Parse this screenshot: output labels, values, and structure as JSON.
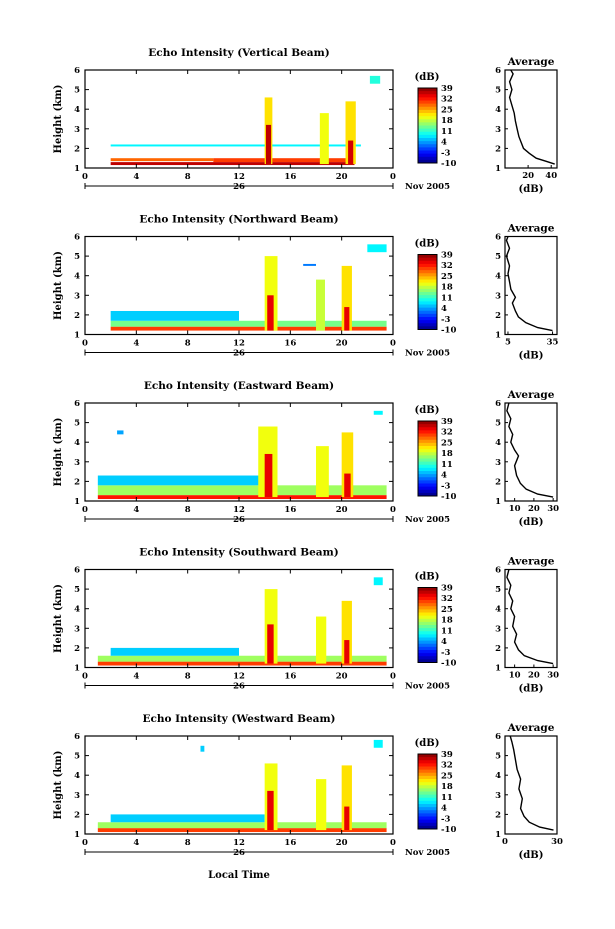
{
  "figure": {
    "xlabel": "Local Time",
    "date_label": "26",
    "month_label": "Nov 2005",
    "colorbar_unit": "(dB)",
    "average_title": "Average",
    "average_xlabel": "(dB)"
  },
  "chart_data": [
    {
      "type": "heatmap",
      "title": "Echo Intensity (Vertical Beam)",
      "xlabel": "Local Time",
      "ylabel": "Height (km)",
      "xticks": [
        "0",
        "4",
        "8",
        "12",
        "16",
        "20",
        "0"
      ],
      "xlim": [
        0,
        24
      ],
      "yticks": [
        "1",
        "2",
        "3",
        "4",
        "5",
        "6"
      ],
      "ylim": [
        1,
        6
      ],
      "colorbar": {
        "label": "(dB)",
        "ticks": [
          "39",
          "32",
          "25",
          "18",
          "11",
          "4",
          "-3",
          "-10"
        ],
        "range": [
          -10,
          39
        ]
      },
      "average": {
        "title": "Average",
        "xlabel": "(dB)",
        "xticks": [
          "20",
          "40"
        ],
        "xlim": [
          0,
          45
        ],
        "ylim": [
          1,
          6
        ],
        "profile": [
          [
            43,
            1.2
          ],
          [
            35,
            1.35
          ],
          [
            27,
            1.5
          ],
          [
            21,
            1.75
          ],
          [
            16,
            2.0
          ],
          [
            14,
            2.3
          ],
          [
            12,
            2.6
          ],
          [
            10.5,
            3.0
          ],
          [
            9,
            3.4
          ],
          [
            8,
            3.8
          ],
          [
            6,
            4.2
          ],
          [
            4,
            4.6
          ],
          [
            6,
            5.0
          ],
          [
            4,
            5.4
          ],
          [
            7,
            5.8
          ],
          [
            5,
            6.0
          ]
        ]
      },
      "echo_cells": [
        [
          2,
          21.5,
          2.1,
          2.2,
          8
        ],
        [
          2,
          10,
          1.35,
          1.5,
          28
        ],
        [
          10,
          21,
          1.3,
          1.5,
          30
        ],
        [
          2,
          21,
          1.15,
          1.3,
          36
        ],
        [
          14,
          14.6,
          1.2,
          4.6,
          22
        ],
        [
          14.1,
          14.5,
          1.2,
          3.2,
          36
        ],
        [
          18.3,
          19,
          1.2,
          3.8,
          20
        ],
        [
          20.3,
          21.1,
          1.2,
          4.4,
          22
        ],
        [
          20.5,
          20.9,
          1.2,
          2.4,
          35
        ],
        [
          22.2,
          23,
          5.3,
          5.7,
          10
        ]
      ]
    },
    {
      "type": "heatmap",
      "title": "Echo Intensity (Northward Beam)",
      "xlabel": "Local Time",
      "ylabel": "Height (km)",
      "xticks": [
        "0",
        "4",
        "8",
        "12",
        "16",
        "20",
        "0"
      ],
      "xlim": [
        0,
        24
      ],
      "yticks": [
        "1",
        "2",
        "3",
        "4",
        "5",
        "6"
      ],
      "ylim": [
        1,
        6
      ],
      "colorbar": {
        "label": "(dB)",
        "ticks": [
          "39",
          "32",
          "25",
          "18",
          "11",
          "4",
          "-3",
          "-10"
        ],
        "range": [
          -10,
          39
        ]
      },
      "average": {
        "title": "Average",
        "xlabel": "(dB)",
        "xticks": [
          "5",
          "35"
        ],
        "xlim": [
          3,
          38
        ],
        "ylim": [
          1,
          6
        ],
        "profile": [
          [
            35,
            1.2
          ],
          [
            25,
            1.35
          ],
          [
            17,
            1.6
          ],
          [
            12,
            1.9
          ],
          [
            10,
            2.2
          ],
          [
            8,
            2.6
          ],
          [
            10,
            2.9
          ],
          [
            7,
            3.3
          ],
          [
            6,
            3.7
          ],
          [
            5,
            4.1
          ],
          [
            6,
            4.5
          ],
          [
            4,
            5.0
          ],
          [
            6,
            5.4
          ],
          [
            4,
            5.8
          ],
          [
            5,
            6.0
          ]
        ]
      },
      "echo_cells": [
        [
          2,
          23.5,
          1.2,
          1.4,
          30
        ],
        [
          2,
          23.5,
          1.4,
          1.7,
          14
        ],
        [
          2,
          12,
          1.7,
          2.2,
          6
        ],
        [
          14,
          15,
          1.2,
          5.0,
          20
        ],
        [
          14.2,
          14.7,
          1.2,
          3.0,
          34
        ],
        [
          18,
          18.7,
          1.2,
          3.8,
          18
        ],
        [
          20,
          20.8,
          1.2,
          4.5,
          22
        ],
        [
          20.2,
          20.6,
          1.2,
          2.4,
          34
        ],
        [
          17,
          18,
          4.5,
          4.6,
          2
        ],
        [
          22,
          23.5,
          5.2,
          5.6,
          8
        ]
      ]
    },
    {
      "type": "heatmap",
      "title": "Echo Intensity (Eastward Beam)",
      "xlabel": "Local Time",
      "ylabel": "Height (km)",
      "xticks": [
        "0",
        "4",
        "8",
        "12",
        "16",
        "20",
        "0"
      ],
      "xlim": [
        0,
        24
      ],
      "yticks": [
        "1",
        "2",
        "3",
        "4",
        "5",
        "6"
      ],
      "ylim": [
        1,
        6
      ],
      "colorbar": {
        "label": "(dB)",
        "ticks": [
          "39",
          "32",
          "25",
          "18",
          "11",
          "4",
          "-3",
          "-10"
        ],
        "range": [
          -10,
          39
        ]
      },
      "average": {
        "title": "Average",
        "xlabel": "(dB)",
        "xticks": [
          "10",
          "20",
          "30"
        ],
        "xlim": [
          5,
          32
        ],
        "ylim": [
          1,
          6
        ],
        "profile": [
          [
            30,
            1.2
          ],
          [
            22,
            1.35
          ],
          [
            16,
            1.6
          ],
          [
            13,
            1.9
          ],
          [
            11,
            2.3
          ],
          [
            10,
            2.8
          ],
          [
            12,
            3.3
          ],
          [
            10,
            3.6
          ],
          [
            8,
            4.0
          ],
          [
            9,
            4.4
          ],
          [
            7,
            4.8
          ],
          [
            8,
            5.2
          ],
          [
            6,
            5.6
          ],
          [
            7,
            6.0
          ]
        ]
      },
      "echo_cells": [
        [
          1,
          23.5,
          1.1,
          1.3,
          32
        ],
        [
          1,
          23.5,
          1.3,
          1.8,
          16
        ],
        [
          1,
          14,
          1.8,
          2.3,
          6
        ],
        [
          13.5,
          15,
          1.2,
          4.8,
          20
        ],
        [
          14,
          14.6,
          1.2,
          3.4,
          34
        ],
        [
          18,
          19,
          1.2,
          3.8,
          20
        ],
        [
          20,
          20.9,
          1.2,
          4.5,
          22
        ],
        [
          20.2,
          20.7,
          1.2,
          2.4,
          34
        ],
        [
          2.5,
          3.0,
          4.4,
          4.6,
          4
        ],
        [
          22.5,
          23.2,
          5.4,
          5.6,
          8
        ]
      ]
    },
    {
      "type": "heatmap",
      "title": "Echo Intensity (Southward Beam)",
      "xlabel": "Local Time",
      "ylabel": "Height (km)",
      "xticks": [
        "0",
        "4",
        "8",
        "12",
        "16",
        "20",
        "0"
      ],
      "xlim": [
        0,
        24
      ],
      "yticks": [
        "1",
        "2",
        "3",
        "4",
        "5",
        "6"
      ],
      "ylim": [
        1,
        6
      ],
      "colorbar": {
        "label": "(dB)",
        "ticks": [
          "39",
          "32",
          "25",
          "18",
          "11",
          "4",
          "-3",
          "-10"
        ],
        "range": [
          -10,
          39
        ]
      },
      "average": {
        "title": "Average",
        "xlabel": "(dB)",
        "xticks": [
          "10",
          "20",
          "30"
        ],
        "xlim": [
          5,
          32
        ],
        "ylim": [
          1,
          6
        ],
        "profile": [
          [
            30,
            1.2
          ],
          [
            22,
            1.35
          ],
          [
            15,
            1.6
          ],
          [
            12,
            1.9
          ],
          [
            10,
            2.3
          ],
          [
            11,
            2.7
          ],
          [
            9,
            3.1
          ],
          [
            10,
            3.6
          ],
          [
            8,
            4.0
          ],
          [
            9,
            4.4
          ],
          [
            7,
            4.8
          ],
          [
            8,
            5.2
          ],
          [
            6,
            5.6
          ],
          [
            7,
            6.0
          ]
        ]
      },
      "echo_cells": [
        [
          1,
          23.5,
          1.1,
          1.3,
          30
        ],
        [
          1,
          23.5,
          1.3,
          1.6,
          16
        ],
        [
          2,
          12,
          1.6,
          2.0,
          6
        ],
        [
          14,
          15,
          1.2,
          5.0,
          20
        ],
        [
          14.2,
          14.7,
          1.2,
          3.2,
          34
        ],
        [
          18,
          18.8,
          1.2,
          3.6,
          20
        ],
        [
          20,
          20.8,
          1.2,
          4.4,
          22
        ],
        [
          20.2,
          20.6,
          1.2,
          2.4,
          34
        ],
        [
          22.5,
          23.2,
          5.2,
          5.6,
          8
        ]
      ]
    },
    {
      "type": "heatmap",
      "title": "Echo Intensity (Westward Beam)",
      "xlabel": "Local Time",
      "ylabel": "Height (km)",
      "xticks": [
        "0",
        "4",
        "8",
        "12",
        "16",
        "20",
        "0"
      ],
      "xlim": [
        0,
        24
      ],
      "yticks": [
        "1",
        "2",
        "3",
        "4",
        "5",
        "6"
      ],
      "ylim": [
        1,
        6
      ],
      "colorbar": {
        "label": "(dB)",
        "ticks": [
          "39",
          "32",
          "25",
          "18",
          "11",
          "4",
          "-3",
          "-10"
        ],
        "range": [
          -10,
          39
        ]
      },
      "average": {
        "title": "Average",
        "xlabel": "(dB)",
        "xticks": [
          "0",
          "30"
        ],
        "xlim": [
          0,
          30
        ],
        "ylim": [
          1,
          6
        ],
        "profile": [
          [
            28,
            1.2
          ],
          [
            20,
            1.35
          ],
          [
            14,
            1.6
          ],
          [
            11,
            1.9
          ],
          [
            9,
            2.3
          ],
          [
            10,
            2.8
          ],
          [
            8,
            3.3
          ],
          [
            9,
            3.8
          ],
          [
            7,
            4.3
          ],
          [
            6,
            4.8
          ],
          [
            5,
            5.3
          ],
          [
            4,
            5.7
          ],
          [
            3,
            6.0
          ]
        ]
      },
      "echo_cells": [
        [
          1,
          23.5,
          1.1,
          1.3,
          30
        ],
        [
          1,
          23.5,
          1.3,
          1.6,
          16
        ],
        [
          2,
          14,
          1.6,
          2.0,
          6
        ],
        [
          14,
          15,
          1.2,
          4.6,
          20
        ],
        [
          14.2,
          14.7,
          1.2,
          3.2,
          34
        ],
        [
          18,
          18.8,
          1.2,
          3.8,
          20
        ],
        [
          20,
          20.8,
          1.2,
          4.5,
          22
        ],
        [
          20.2,
          20.6,
          1.2,
          2.4,
          34
        ],
        [
          9,
          9.3,
          5.2,
          5.5,
          6
        ],
        [
          22.5,
          23.2,
          5.4,
          5.8,
          8
        ]
      ]
    }
  ]
}
